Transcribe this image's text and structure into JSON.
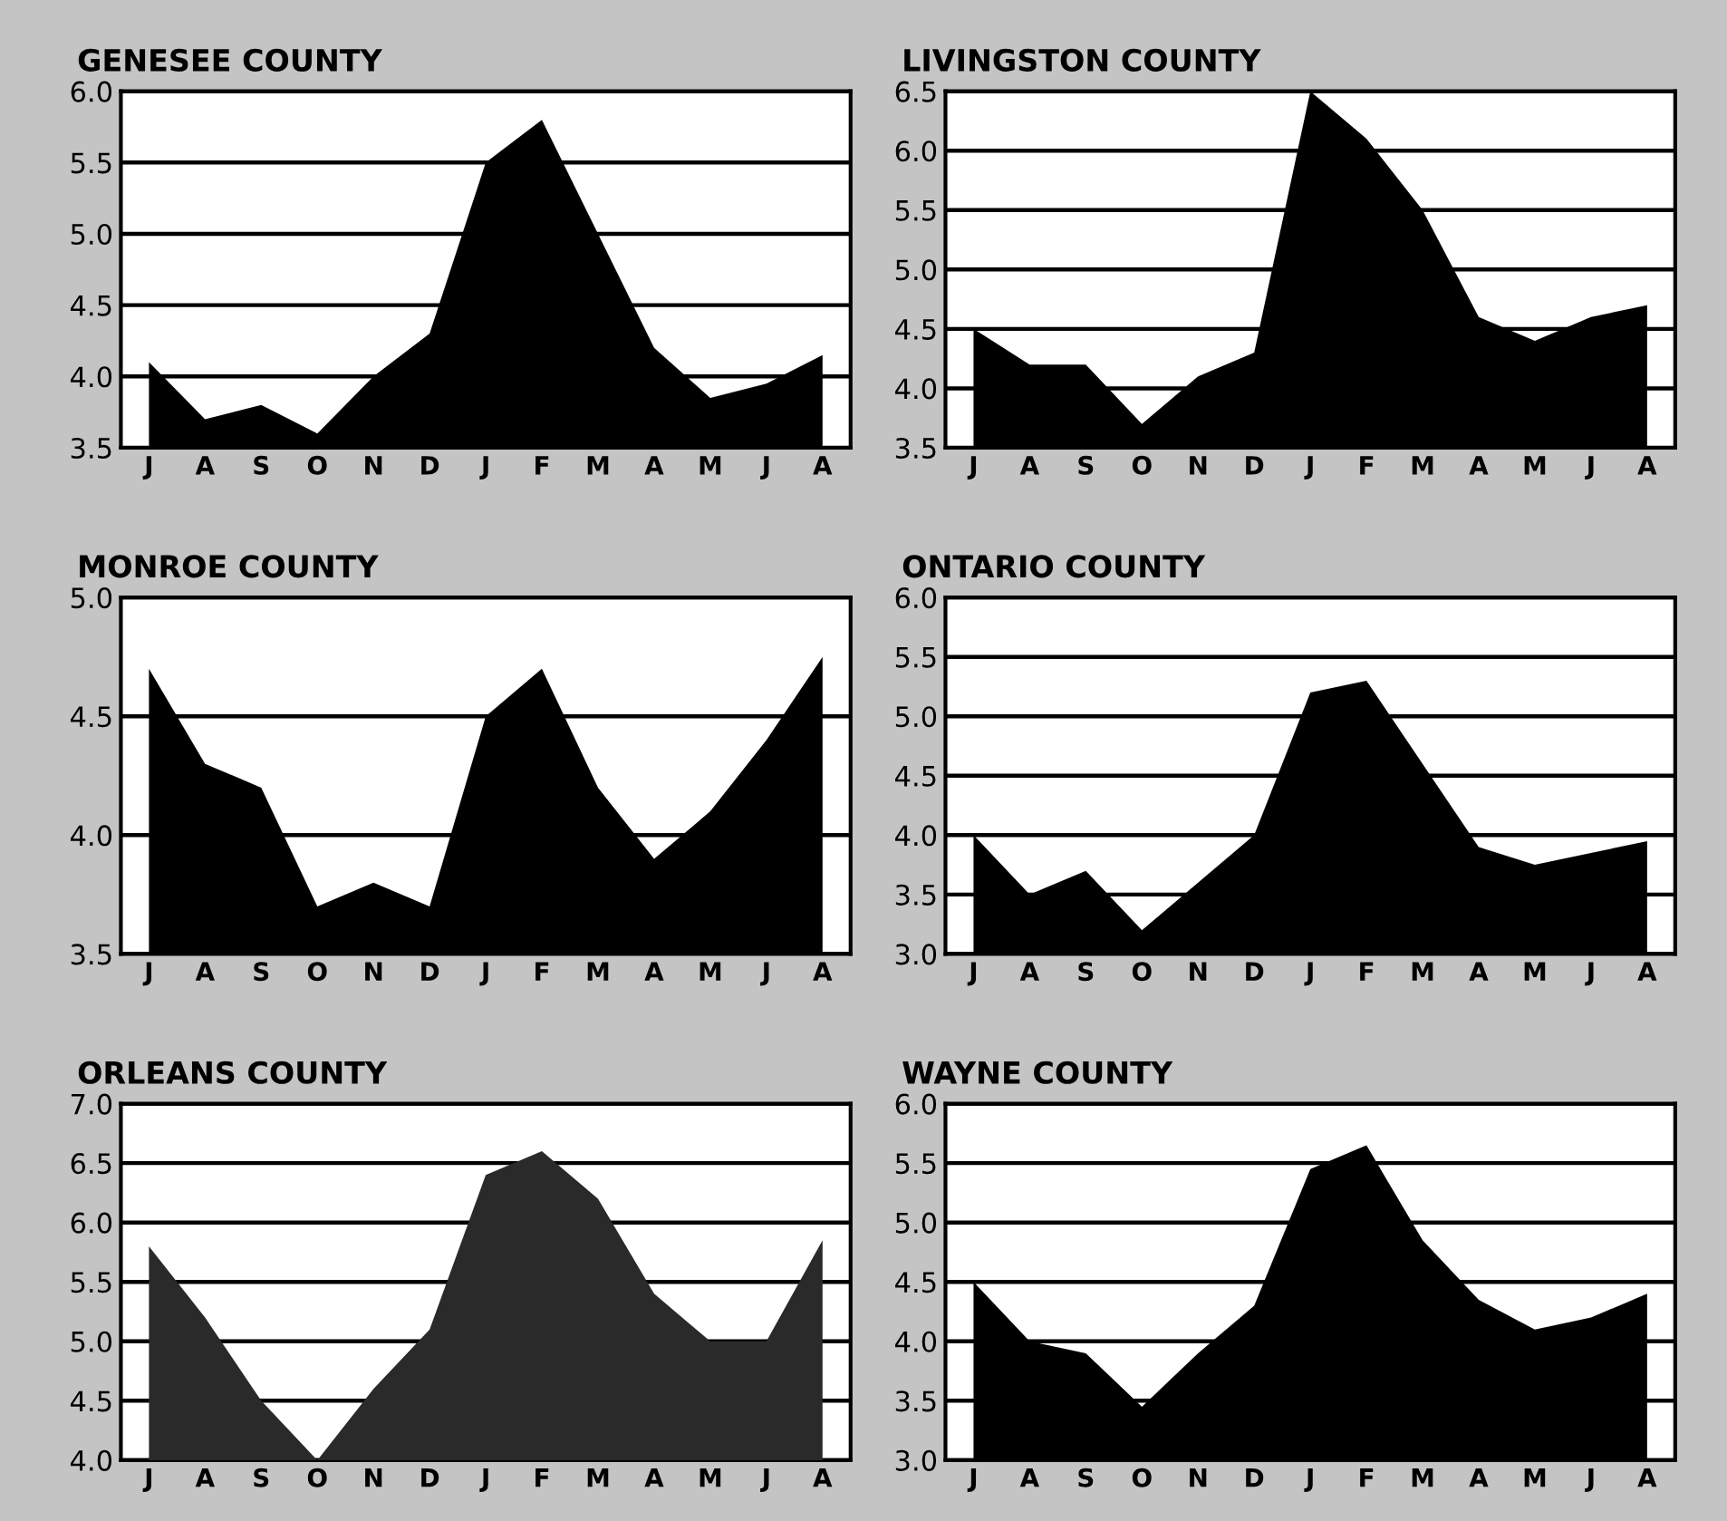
{
  "chart_data": [
    {
      "type": "area",
      "title": "GENESEE COUNTY",
      "categories": [
        "J",
        "A",
        "S",
        "O",
        "N",
        "D",
        "J",
        "F",
        "M",
        "A",
        "M",
        "J",
        "A"
      ],
      "series": [
        {
          "color": "#000000",
          "values": [
            4.1,
            3.7,
            3.8,
            3.6,
            4.0,
            4.3,
            5.5,
            5.8,
            5.0,
            4.2,
            3.85,
            3.95,
            4.15
          ]
        }
      ],
      "ylim": [
        3.5,
        6.0
      ],
      "yticks": [
        3.5,
        {
          "value": 4,
          "label": "4.0"
        },
        4.5,
        {
          "value": 5,
          "label": "5.0"
        },
        5.5,
        {
          "value": 6,
          "label": "6.0"
        }
      ],
      "grid": "y"
    },
    {
      "type": "area",
      "title": "LIVINGSTON COUNTY",
      "categories": [
        "J",
        "A",
        "S",
        "O",
        "N",
        "D",
        "J",
        "F",
        "M",
        "A",
        "M",
        "J",
        "A"
      ],
      "series": [
        {
          "color": "#000000",
          "values": [
            4.5,
            4.2,
            4.2,
            3.7,
            4.1,
            4.3,
            6.5,
            6.1,
            5.5,
            4.6,
            4.4,
            4.6,
            4.7
          ]
        }
      ],
      "ylim": [
        3.5,
        6.5
      ],
      "yticks": [
        3.5,
        {
          "value": 4,
          "label": "4.0"
        },
        4.5,
        {
          "value": 5,
          "label": "5.0"
        },
        5.5,
        {
          "value": 6,
          "label": "6.0"
        },
        6.5
      ],
      "grid": "y"
    },
    {
      "type": "area",
      "title": "MONROE COUNTY",
      "categories": [
        "J",
        "A",
        "S",
        "O",
        "N",
        "D",
        "J",
        "F",
        "M",
        "A",
        "M",
        "J",
        "A"
      ],
      "series": [
        {
          "color": "#000000",
          "values": [
            4.7,
            4.3,
            4.2,
            3.7,
            3.8,
            3.7,
            4.5,
            4.7,
            4.2,
            3.9,
            4.1,
            4.4,
            4.75
          ]
        }
      ],
      "ylim": [
        3.5,
        5.0
      ],
      "yticks": [
        3.5,
        {
          "value": 4,
          "label": "4.0"
        },
        4.5,
        {
          "value": 5,
          "label": "5.0"
        }
      ],
      "grid": "y"
    },
    {
      "type": "area",
      "title": "ONTARIO COUNTY",
      "categories": [
        "J",
        "A",
        "S",
        "O",
        "N",
        "D",
        "J",
        "F",
        "M",
        "A",
        "M",
        "J",
        "A"
      ],
      "series": [
        {
          "color": "#000000",
          "values": [
            4.0,
            3.5,
            3.7,
            3.2,
            3.6,
            4.0,
            5.2,
            5.3,
            4.6,
            3.9,
            3.75,
            3.85,
            3.95
          ]
        }
      ],
      "ylim": [
        3.0,
        6.0
      ],
      "yticks": [
        {
          "value": 3,
          "label": "3.0"
        },
        3.5,
        {
          "value": 4,
          "label": "4.0"
        },
        4.5,
        {
          "value": 5,
          "label": "5.0"
        },
        5.5,
        {
          "value": 6,
          "label": "6.0"
        }
      ],
      "grid": "y"
    },
    {
      "type": "area",
      "title": "ORLEANS COUNTY",
      "categories": [
        "J",
        "A",
        "S",
        "O",
        "N",
        "D",
        "J",
        "F",
        "M",
        "A",
        "M",
        "J",
        "A"
      ],
      "series": [
        {
          "color": "#2a2a2a",
          "values": [
            5.8,
            5.2,
            4.5,
            4.0,
            4.6,
            5.1,
            6.4,
            6.6,
            6.2,
            5.4,
            5.0,
            5.0,
            5.85
          ]
        }
      ],
      "ylim": [
        4.0,
        7.0
      ],
      "yticks": [
        {
          "value": 4,
          "label": "4.0"
        },
        4.5,
        {
          "value": 5,
          "label": "5.0"
        },
        5.5,
        {
          "value": 6,
          "label": "6.0"
        },
        6.5,
        {
          "value": 7,
          "label": "7.0"
        }
      ],
      "grid": "y"
    },
    {
      "type": "area",
      "title": "WAYNE COUNTY",
      "categories": [
        "J",
        "A",
        "S",
        "O",
        "N",
        "D",
        "J",
        "F",
        "M",
        "A",
        "M",
        "J",
        "A"
      ],
      "series": [
        {
          "color": "#000000",
          "values": [
            4.5,
            4.0,
            3.9,
            3.45,
            3.9,
            4.3,
            5.45,
            5.65,
            4.85,
            4.35,
            4.1,
            4.2,
            4.4
          ]
        }
      ],
      "ylim": [
        3.0,
        6.0
      ],
      "yticks": [
        {
          "value": 3,
          "label": "3.0"
        },
        3.5,
        {
          "value": 4,
          "label": "4.0"
        },
        4.5,
        {
          "value": 5,
          "label": "5.0"
        },
        5.5,
        {
          "value": 6,
          "label": "6.0"
        }
      ],
      "grid": "y"
    }
  ]
}
